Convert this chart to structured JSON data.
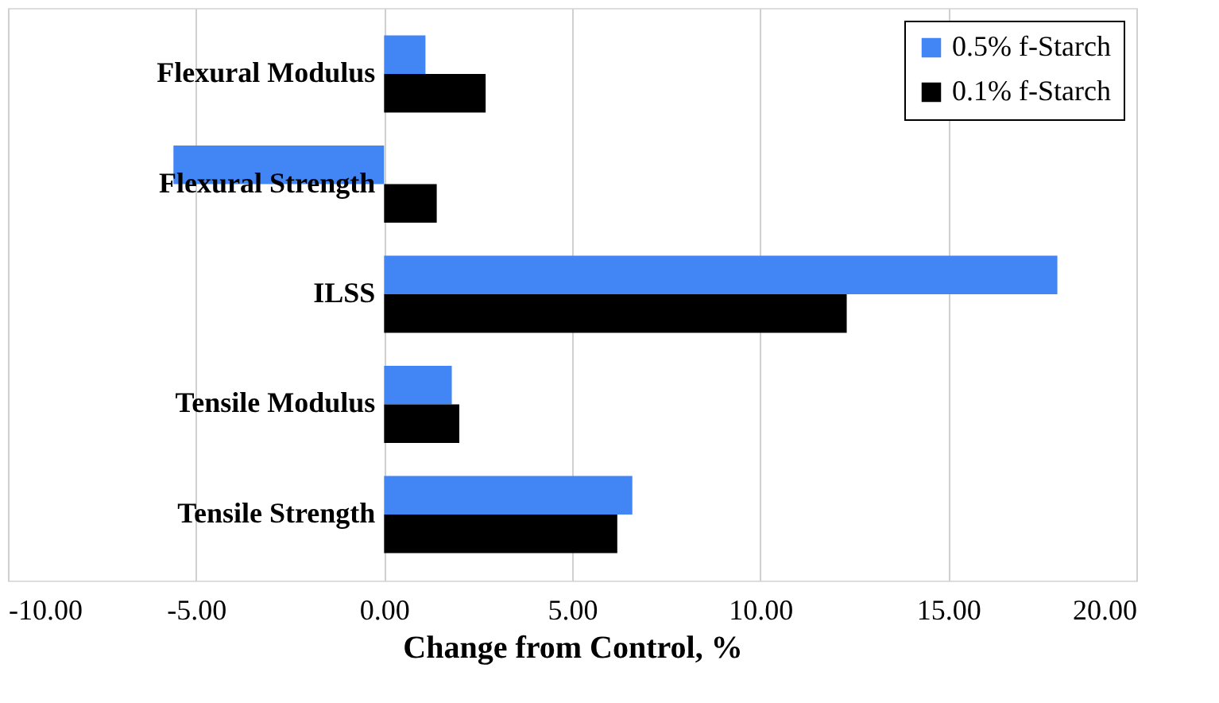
{
  "chart_data": {
    "type": "bar",
    "orientation": "horizontal",
    "xlabel": "Change from Control, %",
    "categories": [
      "Flexural Modulus",
      "Flexural Strength",
      "ILSS",
      "Tensile Modulus",
      "Tensile Strength"
    ],
    "series": [
      {
        "name": "0.5% f-Starch",
        "color": "#4285f4",
        "values": [
          1.1,
          -5.6,
          17.9,
          1.8,
          6.6
        ]
      },
      {
        "name": "0.1% f-Starch",
        "color": "#000000",
        "values": [
          2.7,
          1.4,
          12.3,
          2.0,
          6.2
        ]
      }
    ],
    "xlim": [
      -10,
      20
    ],
    "xticks": [
      {
        "value": -10,
        "label": "-10.00"
      },
      {
        "value": -5,
        "label": "-5.00"
      },
      {
        "value": 0,
        "label": "0.00"
      },
      {
        "value": 5,
        "label": "5.00"
      },
      {
        "value": 10,
        "label": "10.00"
      },
      {
        "value": 15,
        "label": "15.00"
      },
      {
        "value": 20,
        "label": "20.00"
      }
    ],
    "grid": "x",
    "legend": "top right"
  }
}
